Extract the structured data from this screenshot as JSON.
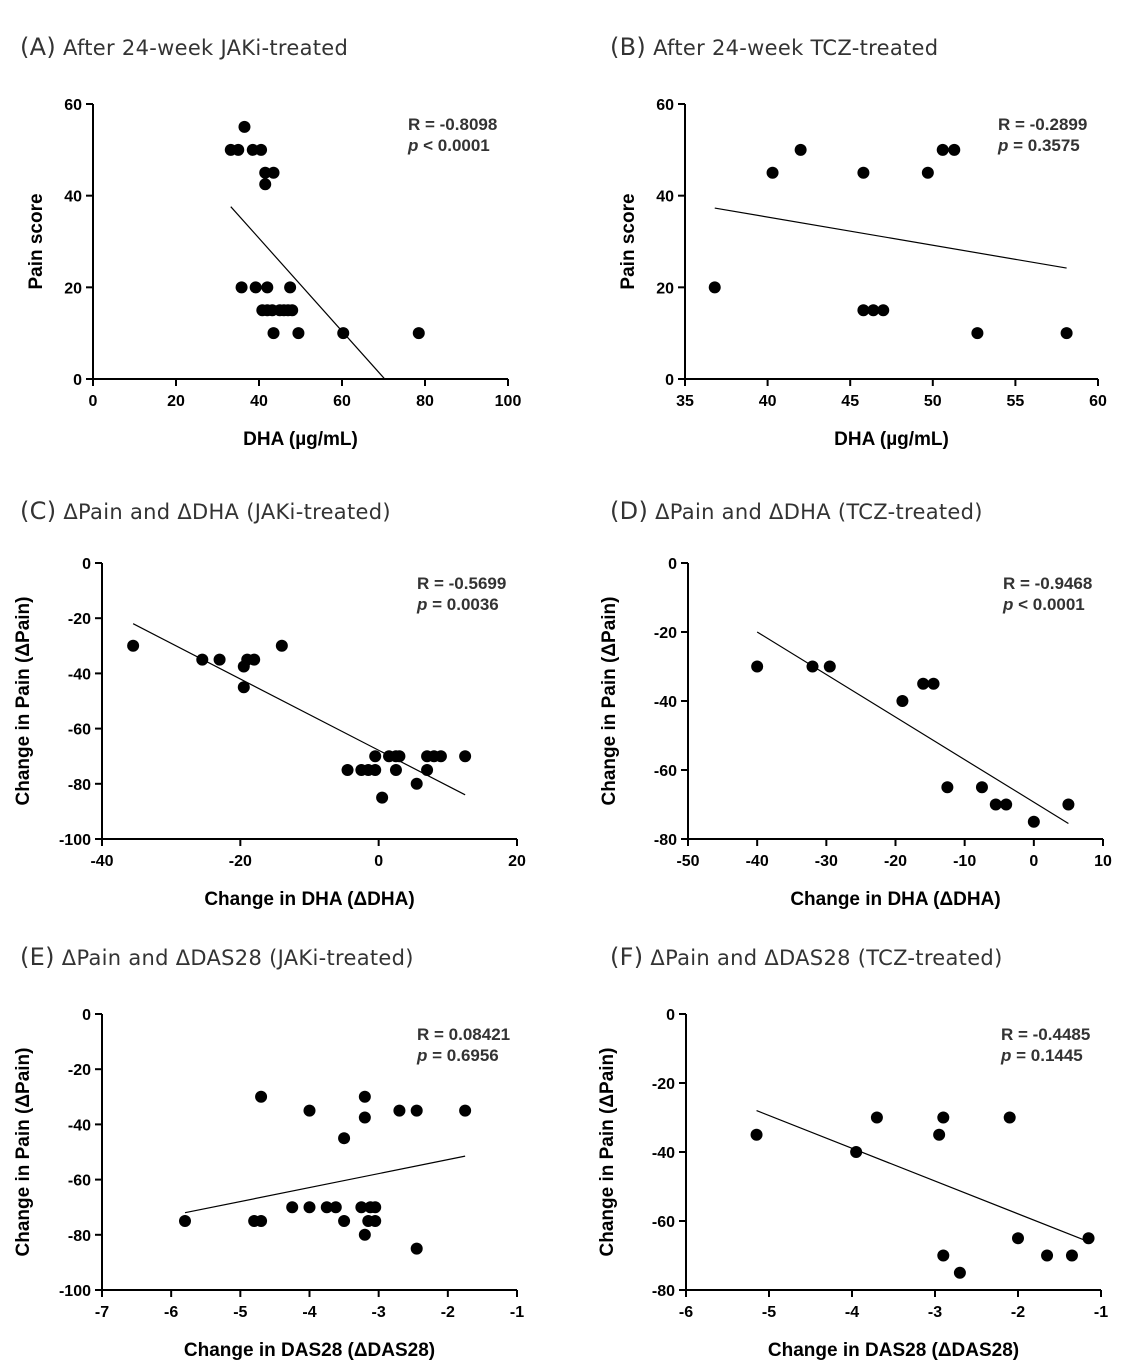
{
  "chart_data": [
    {
      "type": "scatter",
      "panel": "(A)",
      "title": "After 24-week JAKi-treated",
      "xlabel": "DHA (µg/mL)",
      "ylabel": "Pain score",
      "xlim": [
        0,
        100
      ],
      "ylim": [
        0,
        60
      ],
      "xticks": [
        0,
        20,
        40,
        60,
        80,
        100
      ],
      "yticks": [
        0,
        20,
        40,
        60
      ],
      "stats": {
        "r": "R = -0.8098",
        "p_label": "p",
        "p_value": " < 0.0001"
      },
      "points": [
        [
          36.5,
          55
        ],
        [
          33.2,
          50
        ],
        [
          35.0,
          50
        ],
        [
          38.5,
          50
        ],
        [
          40.5,
          50
        ],
        [
          41.5,
          45
        ],
        [
          43.5,
          45
        ],
        [
          41.5,
          42.5
        ],
        [
          35.8,
          20
        ],
        [
          39.2,
          20
        ],
        [
          42.0,
          20
        ],
        [
          47.5,
          20
        ],
        [
          40.8,
          15
        ],
        [
          42.0,
          15
        ],
        [
          43.2,
          15
        ],
        [
          45.0,
          15
        ],
        [
          46.0,
          15
        ],
        [
          47.0,
          15
        ],
        [
          48.0,
          15
        ],
        [
          43.5,
          10
        ],
        [
          49.5,
          10
        ],
        [
          60.3,
          10
        ],
        [
          78.5,
          10
        ]
      ],
      "fit": {
        "x": [
          33.2,
          70.3
        ],
        "y": [
          37.6,
          0
        ]
      }
    },
    {
      "type": "scatter",
      "panel": "(B)",
      "title": "After 24-week TCZ-treated",
      "xlabel": "DHA (µg/mL)",
      "ylabel": "Pain score",
      "xlim": [
        35,
        60
      ],
      "ylim": [
        0,
        60
      ],
      "xticks": [
        35,
        40,
        45,
        50,
        55,
        60
      ],
      "yticks": [
        0,
        20,
        40,
        60
      ],
      "stats": {
        "r": "R = -0.2899",
        "p_label": "p",
        "p_value": " = 0.3575"
      },
      "points": [
        [
          36.8,
          20
        ],
        [
          40.3,
          45
        ],
        [
          42.0,
          50
        ],
        [
          45.8,
          45
        ],
        [
          49.7,
          45
        ],
        [
          50.6,
          50
        ],
        [
          51.3,
          50
        ],
        [
          45.8,
          15
        ],
        [
          46.4,
          15
        ],
        [
          47.0,
          15
        ],
        [
          52.7,
          10
        ],
        [
          58.1,
          10
        ]
      ],
      "fit": {
        "x": [
          36.8,
          58.1
        ],
        "y": [
          37.3,
          24.2
        ]
      }
    },
    {
      "type": "scatter",
      "panel": "(C)",
      "title": "ΔPain and ΔDHA (JAKi-treated)",
      "xlabel": "Change in DHA (ΔDHA)",
      "ylabel": "Change in Pain (ΔPain)",
      "xlim": [
        -40,
        20
      ],
      "ylim": [
        -100,
        0
      ],
      "xticks": [
        -40,
        -20,
        0,
        20
      ],
      "yticks": [
        -100,
        -80,
        -60,
        -40,
        -20,
        0
      ],
      "stats": {
        "r": "R = -0.5699",
        "p_label": "p",
        "p_value": " = 0.0036"
      },
      "points": [
        [
          -35.5,
          -30
        ],
        [
          -25.5,
          -35
        ],
        [
          -23.0,
          -35
        ],
        [
          -19.0,
          -35
        ],
        [
          -18.0,
          -35
        ],
        [
          -14.0,
          -30
        ],
        [
          -19.5,
          -37.5
        ],
        [
          -19.5,
          -45
        ],
        [
          -4.5,
          -75
        ],
        [
          -2.5,
          -75
        ],
        [
          -1.5,
          -75
        ],
        [
          -0.5,
          -75
        ],
        [
          -0.5,
          -70
        ],
        [
          1.5,
          -70
        ],
        [
          2.5,
          -70
        ],
        [
          3.0,
          -70
        ],
        [
          2.5,
          -75
        ],
        [
          0.5,
          -85
        ],
        [
          5.5,
          -80
        ],
        [
          7.0,
          -70
        ],
        [
          8.0,
          -70
        ],
        [
          9.0,
          -70
        ],
        [
          7.0,
          -75
        ],
        [
          12.5,
          -70
        ]
      ],
      "fit": {
        "x": [
          -35.5,
          12.5
        ],
        "y": [
          -22,
          -84
        ]
      }
    },
    {
      "type": "scatter",
      "panel": "(D)",
      "title": "ΔPain and ΔDHA (TCZ-treated)",
      "xlabel": "Change in DHA (ΔDHA)",
      "ylabel": "Change in Pain (ΔPain)",
      "xlim": [
        -50,
        10
      ],
      "ylim": [
        -80,
        0
      ],
      "xticks": [
        -50,
        -40,
        -30,
        -20,
        -10,
        0,
        10
      ],
      "yticks": [
        -80,
        -60,
        -40,
        -20,
        0
      ],
      "stats": {
        "r": "R = -0.9468",
        "p_label": "p",
        "p_value": " < 0.0001"
      },
      "points": [
        [
          -40,
          -30
        ],
        [
          -32,
          -30
        ],
        [
          -29.5,
          -30
        ],
        [
          -19,
          -40
        ],
        [
          -16,
          -35
        ],
        [
          -14.5,
          -35
        ],
        [
          -12.5,
          -65
        ],
        [
          -7.5,
          -65
        ],
        [
          -5.5,
          -70
        ],
        [
          -4,
          -70
        ],
        [
          0,
          -75
        ],
        [
          5,
          -70
        ]
      ],
      "fit": {
        "x": [
          -40,
          5
        ],
        "y": [
          -20,
          -75.5
        ]
      }
    },
    {
      "type": "scatter",
      "panel": "(E)",
      "title": "ΔPain and ΔDAS28 (JAKi-treated)",
      "xlabel": "Change in DAS28 (ΔDAS28)",
      "ylabel": "Change in Pain (ΔPain)",
      "xlim": [
        -7,
        -1
      ],
      "ylim": [
        -100,
        0
      ],
      "xticks": [
        -7,
        -6,
        -5,
        -4,
        -3,
        -2,
        -1
      ],
      "yticks": [
        -100,
        -80,
        -60,
        -40,
        -20,
        0
      ],
      "stats": {
        "r": "R = 0.08421",
        "p_label": "p",
        "p_value": " = 0.6956"
      },
      "points": [
        [
          -5.8,
          -75
        ],
        [
          -4.8,
          -75
        ],
        [
          -4.7,
          -75
        ],
        [
          -4.7,
          -30
        ],
        [
          -4.0,
          -35
        ],
        [
          -3.5,
          -45
        ],
        [
          -3.2,
          -30
        ],
        [
          -3.2,
          -37.5
        ],
        [
          -2.7,
          -35
        ],
        [
          -2.45,
          -35
        ],
        [
          -1.75,
          -35
        ],
        [
          -4.25,
          -70
        ],
        [
          -4.0,
          -70
        ],
        [
          -3.75,
          -70
        ],
        [
          -3.62,
          -70
        ],
        [
          -3.5,
          -75
        ],
        [
          -3.25,
          -70
        ],
        [
          -3.12,
          -70
        ],
        [
          -3.05,
          -70
        ],
        [
          -3.2,
          -80
        ],
        [
          -3.15,
          -75
        ],
        [
          -3.05,
          -75
        ],
        [
          -2.45,
          -85
        ]
      ],
      "fit": {
        "x": [
          -5.8,
          -1.75
        ],
        "y": [
          -72,
          -51.5
        ]
      }
    },
    {
      "type": "scatter",
      "panel": "(F)",
      "title": "ΔPain and ΔDAS28 (TCZ-treated)",
      "xlabel": "Change in DAS28 (ΔDAS28)",
      "ylabel": "Change in Pain (ΔPain)",
      "xlim": [
        -6,
        -1
      ],
      "ylim": [
        -80,
        0
      ],
      "xticks": [
        -6,
        -5,
        -4,
        -3,
        -2,
        -1
      ],
      "yticks": [
        -80,
        -60,
        -40,
        -20,
        0
      ],
      "stats": {
        "r": "R = -0.4485",
        "p_label": "p",
        "p_value": " = 0.1445"
      },
      "points": [
        [
          -5.15,
          -35
        ],
        [
          -3.95,
          -40
        ],
        [
          -3.7,
          -30
        ],
        [
          -2.95,
          -35
        ],
        [
          -2.9,
          -30
        ],
        [
          -2.9,
          -70
        ],
        [
          -2.7,
          -75
        ],
        [
          -2.1,
          -30
        ],
        [
          -2.0,
          -65
        ],
        [
          -1.65,
          -70
        ],
        [
          -1.35,
          -70
        ],
        [
          -1.15,
          -65
        ]
      ],
      "fit": {
        "x": [
          -5.15,
          -1.15
        ],
        "y": [
          -28,
          -66
        ]
      }
    }
  ]
}
